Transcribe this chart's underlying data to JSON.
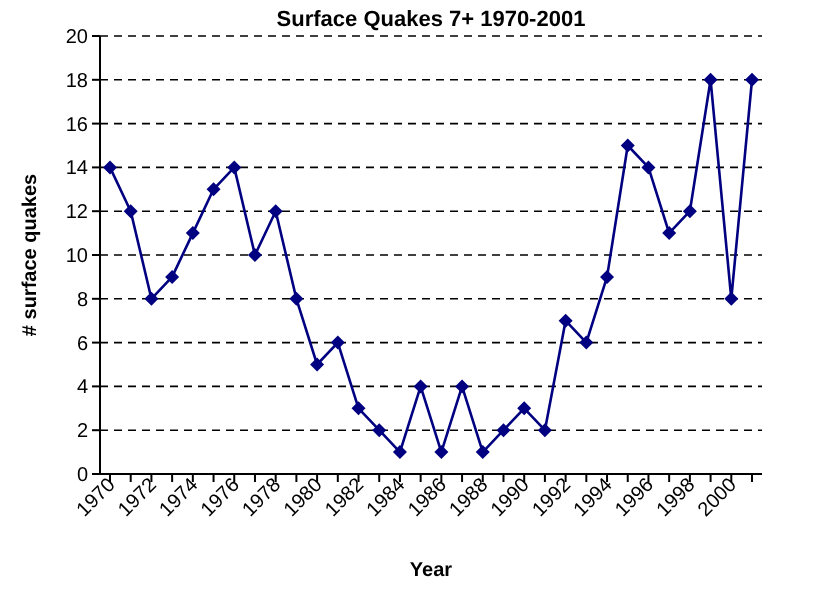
{
  "chart_data": {
    "type": "line",
    "title": "Surface Quakes 7+ 1970-2001",
    "xlabel": "Year",
    "ylabel": "# surface quakes",
    "categories": [
      "1970",
      null,
      "1972",
      null,
      "1974",
      null,
      "1976",
      null,
      "1978",
      null,
      "1980",
      null,
      "1982",
      null,
      "1984",
      null,
      "1986",
      null,
      "1988",
      null,
      "1990",
      null,
      "1992",
      null,
      "1994",
      null,
      "1996",
      null,
      "1998",
      null,
      "2000",
      null
    ],
    "series": [
      {
        "color": "#000080",
        "values": [
          14,
          12,
          8,
          9,
          11,
          13,
          14,
          10,
          12,
          8,
          5,
          6,
          3,
          2,
          1,
          4,
          1,
          4,
          1,
          2,
          3,
          2,
          7,
          6,
          9,
          15,
          14,
          11,
          12,
          18,
          8,
          18
        ]
      }
    ],
    "ylim": [
      0,
      20
    ],
    "yticks": [
      0,
      2,
      4,
      6,
      8,
      10,
      12,
      14,
      16,
      18,
      20
    ],
    "grid": "y",
    "marker": "diamond",
    "line_style": "solid"
  }
}
